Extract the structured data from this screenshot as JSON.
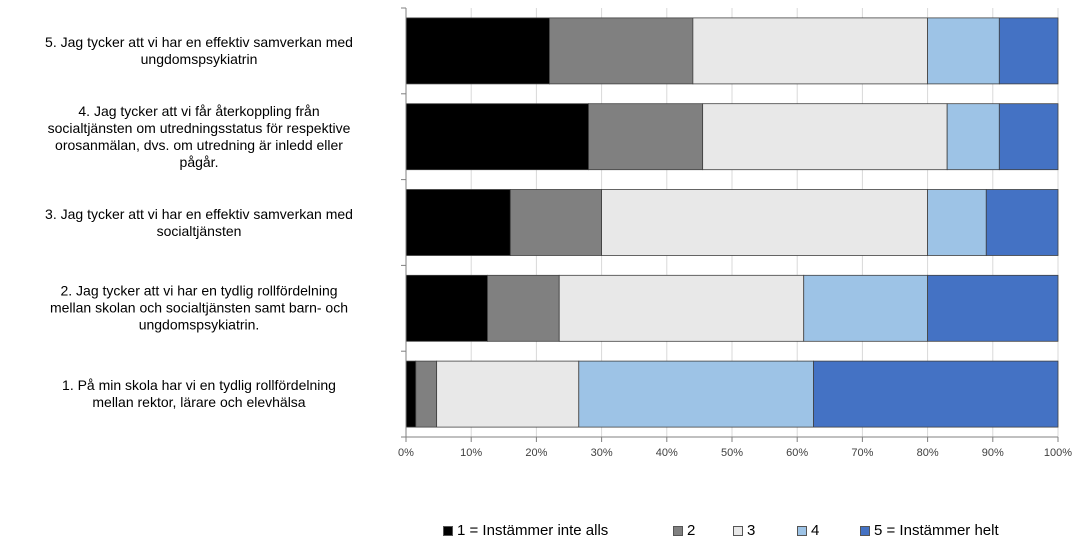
{
  "chart_data": {
    "type": "bar",
    "orientation": "horizontal",
    "stacked": "percent",
    "categories": [
      "5. Jag tycker att vi har en effektiv samverkan med ungdomspsykiatrin",
      "4. Jag tycker att vi får återkoppling från socialtjänsten om utredningsstatus för respektive orosanmälan, dvs. om utredning är inledd eller pågår.",
      "3. Jag tycker att vi har en effektiv samverkan med socialtjänsten",
      "2. Jag tycker att vi har en tydlig rollfördelning mellan skolan och socialtjänsten samt barn- och ungdomspsykiatrin.",
      "1. På min skola har vi en tydlig rollfördelning mellan rektor, lärare och elevhälsa"
    ],
    "category_lines": [
      [
        "5. Jag tycker att vi har en effektiv samverkan med",
        "ungdomspsykiatrin"
      ],
      [
        "4. Jag tycker att vi får återkoppling från",
        "socialtjänsten om utredningsstatus för respektive",
        "orosanmälan, dvs. om utredning är inledd eller",
        "pågår."
      ],
      [
        "3. Jag tycker att vi har en effektiv samverkan med",
        "socialtjänsten"
      ],
      [
        "2. Jag tycker att vi har en tydlig rollfördelning",
        "mellan skolan och socialtjänsten samt barn- och",
        "ungdomspsykiatrin."
      ],
      [
        "1. På min skola har vi en tydlig rollfördelning",
        "mellan rektor, lärare och elevhälsa"
      ]
    ],
    "series": [
      {
        "name": "1 = Instämmer inte alls",
        "color": "#000000",
        "values": [
          22,
          28,
          16,
          12.5,
          1.5
        ]
      },
      {
        "name": "2",
        "color": "#808080",
        "values": [
          22,
          17.5,
          14,
          11,
          3.2
        ]
      },
      {
        "name": "3",
        "color": "#e8e8e8",
        "values": [
          36,
          37.5,
          50,
          37.5,
          21.8
        ]
      },
      {
        "name": "4",
        "color": "#9dc3e6",
        "values": [
          11,
          8,
          9,
          19,
          36
        ]
      },
      {
        "name": "5 = Instämmer helt",
        "color": "#4472c4",
        "values": [
          9,
          9,
          11,
          20,
          37.5
        ]
      }
    ],
    "x_ticks": [
      "0%",
      "10%",
      "20%",
      "30%",
      "40%",
      "50%",
      "60%",
      "70%",
      "80%",
      "90%",
      "100%"
    ],
    "xlim": [
      0,
      100
    ],
    "grid": true,
    "legend_position": "bottom"
  }
}
